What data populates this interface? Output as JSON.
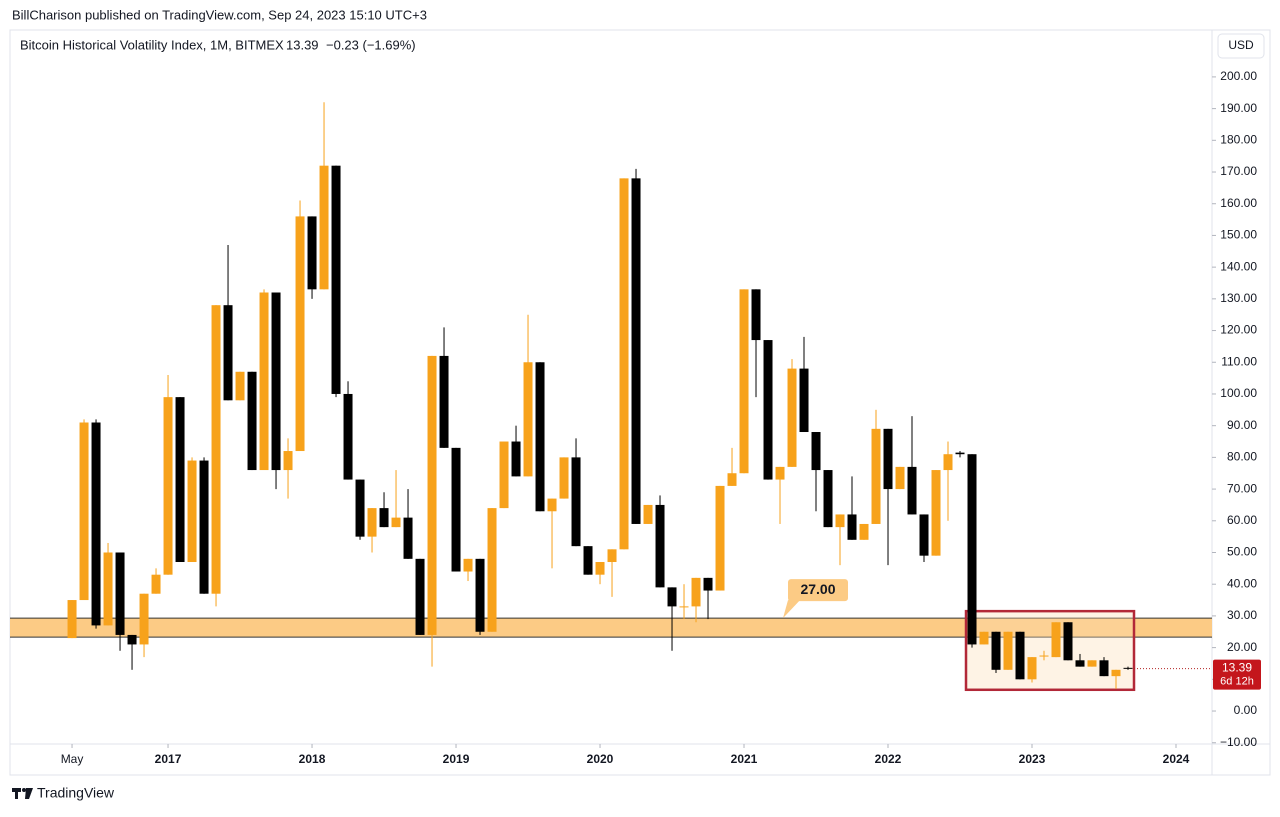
{
  "header": "BillCharison published on TradingView.com, Sep 24, 2023 15:10 UTC+3",
  "footer": "TradingView",
  "currency_button": "USD",
  "chart_data": {
    "type": "candlestick",
    "title": "Bitcoin Historical Volatility Index, 1M, BITMEX",
    "last_price": 13.39,
    "change": "−0.23 (−1.69%)",
    "countdown": "6d 12h",
    "up_color": "#f7a21b",
    "down_color": "#000000",
    "xlim": [
      -5.17,
      95
    ],
    "xticks": [
      {
        "value": 0,
        "label": "May"
      },
      {
        "value": 8,
        "label": "2017"
      },
      {
        "value": 20,
        "label": "2018"
      },
      {
        "value": 32,
        "label": "2019"
      },
      {
        "value": 44,
        "label": "2020"
      },
      {
        "value": 56,
        "label": "2021"
      },
      {
        "value": 68,
        "label": "2022"
      },
      {
        "value": 80,
        "label": "2023"
      },
      {
        "value": 92,
        "label": "2024"
      }
    ],
    "ylim": [
      -10.4,
      204.7
    ],
    "yticks": [
      {
        "value": -10,
        "label": "−10.00"
      },
      {
        "value": 0,
        "label": "0.00"
      },
      {
        "value": 10,
        "label": "10.00"
      },
      {
        "value": 20,
        "label": "20.00"
      },
      {
        "value": 30,
        "label": "30.00"
      },
      {
        "value": 40,
        "label": "40.00"
      },
      {
        "value": 50,
        "label": "50.00"
      },
      {
        "value": 60,
        "label": "60.00"
      },
      {
        "value": 70,
        "label": "70.00"
      },
      {
        "value": 80,
        "label": "80.00"
      },
      {
        "value": 90,
        "label": "90.00"
      },
      {
        "value": 100,
        "label": "100.00"
      },
      {
        "value": 110,
        "label": "110.00"
      },
      {
        "value": 120,
        "label": "120.00"
      },
      {
        "value": 130,
        "label": "130.00"
      },
      {
        "value": 140,
        "label": "140.00"
      },
      {
        "value": 150,
        "label": "150.00"
      },
      {
        "value": 160,
        "label": "160.00"
      },
      {
        "value": 170,
        "label": "170.00"
      },
      {
        "value": 180,
        "label": "180.00"
      },
      {
        "value": 190,
        "label": "190.00"
      },
      {
        "value": 200,
        "label": "200.00"
      }
    ],
    "open": [
      23,
      35,
      91,
      27,
      50,
      24,
      21,
      37,
      43,
      99,
      47,
      79,
      37,
      128,
      98,
      107,
      76,
      132,
      76,
      82,
      156,
      133,
      172,
      100,
      73,
      55,
      64,
      58,
      61,
      48,
      24,
      112,
      83,
      44,
      48,
      25,
      64,
      85,
      74,
      110,
      63,
      67,
      80,
      52,
      43,
      47,
      51,
      168,
      59,
      65,
      39,
      33,
      33,
      42,
      38,
      71,
      75,
      133,
      117,
      73,
      77,
      108,
      88,
      76,
      58,
      62,
      54,
      59,
      89,
      70,
      77,
      62,
      49,
      76,
      81.5,
      81,
      21,
      25,
      13,
      25,
      10,
      17.5,
      17,
      28,
      16,
      14,
      16,
      11,
      13.62
    ],
    "high": [
      35,
      92,
      92,
      53,
      50,
      24,
      37,
      45,
      106,
      99,
      80,
      80,
      128,
      147,
      107,
      107,
      133,
      132,
      86,
      161,
      156,
      192,
      172,
      104,
      73,
      64,
      69,
      76,
      70,
      48,
      112,
      121,
      83,
      48,
      48,
      64,
      85,
      90,
      125,
      110,
      67,
      80,
      86,
      52,
      47,
      51,
      168,
      171,
      65,
      68,
      39,
      40,
      42,
      42,
      71,
      83,
      133,
      133,
      117,
      77,
      111,
      118,
      88,
      76,
      62,
      74,
      59,
      95,
      89,
      77,
      93,
      62,
      76,
      85,
      82,
      81,
      25,
      25,
      25,
      25,
      17,
      19,
      28,
      28,
      18,
      16,
      17,
      13,
      14
    ],
    "low": [
      23,
      35,
      26,
      27,
      19,
      13,
      17,
      37,
      43,
      47,
      47,
      37,
      33,
      98,
      98,
      76,
      76,
      70,
      67,
      82,
      130,
      133,
      99,
      73,
      54,
      50,
      58,
      58,
      48,
      24,
      14,
      83,
      44,
      41,
      24,
      25,
      64,
      74,
      74,
      63,
      45,
      67,
      52,
      43,
      40,
      36,
      51,
      59,
      59,
      39,
      19,
      29,
      28,
      29,
      38,
      71,
      75,
      99,
      73,
      59,
      77,
      88,
      63,
      58,
      46,
      54,
      54,
      59,
      46,
      70,
      62,
      47,
      49,
      60,
      80,
      20,
      21,
      12,
      13,
      10,
      9,
      16,
      17,
      16,
      14,
      14,
      11,
      7,
      13
    ],
    "close": [
      35,
      91,
      27,
      50,
      24,
      21,
      37,
      43,
      99,
      47,
      79,
      37,
      128,
      98,
      107,
      76,
      132,
      76,
      82,
      156,
      133,
      172,
      100,
      73,
      55,
      64,
      58,
      61,
      48,
      24,
      112,
      83,
      44,
      48,
      25,
      64,
      85,
      74,
      110,
      63,
      67,
      80,
      52,
      43,
      47,
      51,
      168,
      59,
      65,
      39,
      33,
      33,
      42,
      38,
      71,
      75,
      133,
      117,
      73,
      77,
      108,
      88,
      76,
      58,
      62,
      54,
      59,
      89,
      70,
      77,
      62,
      49,
      76,
      81,
      81,
      21,
      25,
      13,
      25,
      10,
      17,
      17.5,
      28,
      16,
      14,
      16,
      11,
      13,
      13.39
    ],
    "band": {
      "low": 23.3,
      "high": 29.3,
      "label": "27.00",
      "color": "#fccb85"
    },
    "highlight": {
      "x_range": [
        74.5,
        88.5
      ],
      "y_range": [
        6.7,
        31.5
      ],
      "color": "#b22838"
    }
  }
}
